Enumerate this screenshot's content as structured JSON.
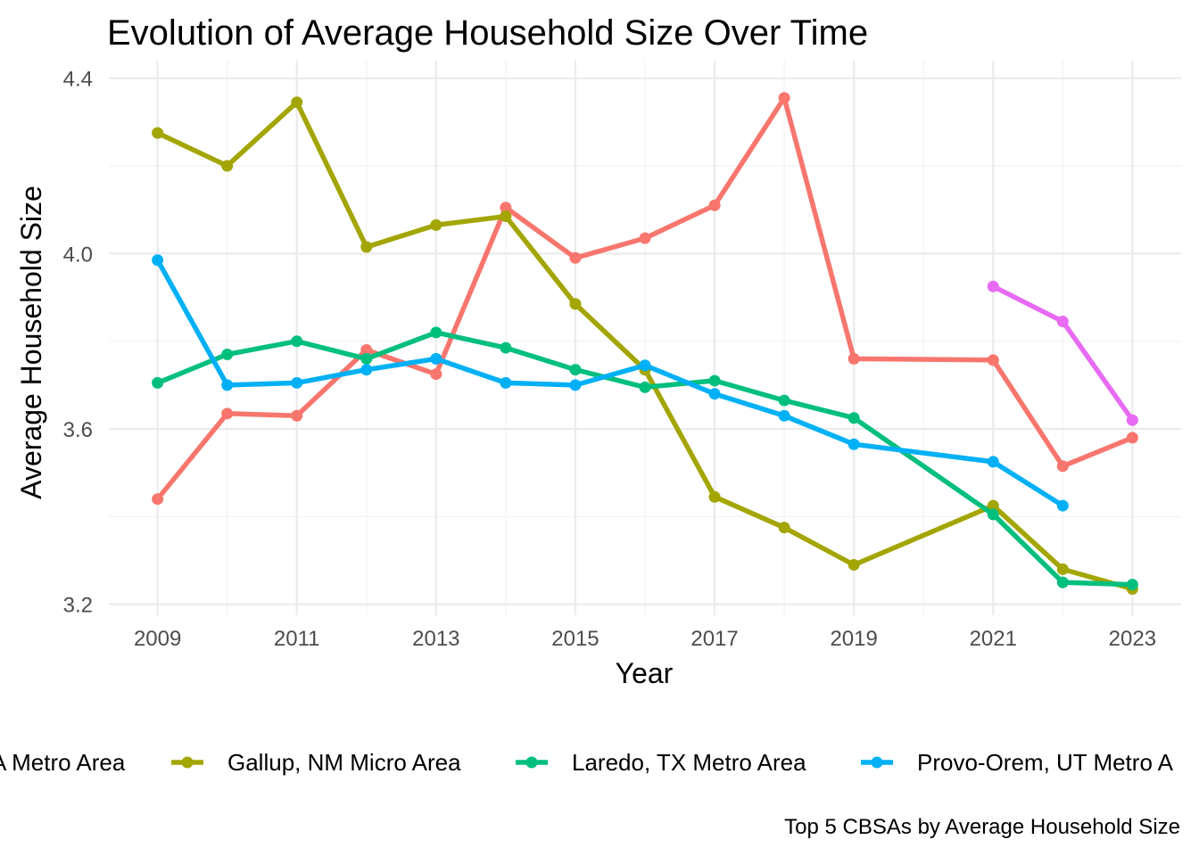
{
  "chart_data": {
    "type": "line",
    "title": "Evolution of Average Household Size Over Time",
    "xlabel": "Year",
    "ylabel": "Average Household Size",
    "caption": "Top 5 CBSAs by Average Household Size",
    "xlim": [
      2008.3,
      2023.7
    ],
    "ylim": [
      3.175,
      4.44
    ],
    "x_ticks": [
      2009,
      2011,
      2013,
      2015,
      2017,
      2019,
      2021,
      2023
    ],
    "x_minor_ticks": [
      2010,
      2012,
      2014,
      2016,
      2018,
      2020,
      2022
    ],
    "y_ticks": [
      3.2,
      3.6,
      4.0,
      4.4
    ],
    "y_tick_labels": [
      "3.2",
      "3.6",
      "4.0",
      "4.4"
    ],
    "y_minor_ticks": [
      3.4,
      3.8,
      4.2
    ],
    "grid": true,
    "legend_position": "bottom",
    "series": [
      {
        "name": "A Metro Area",
        "color": "#F8766D",
        "points": [
          {
            "x": 2009,
            "y": 3.44
          },
          {
            "x": 2010,
            "y": 3.635
          },
          {
            "x": 2011,
            "y": 3.63
          },
          {
            "x": 2012,
            "y": 3.78
          },
          {
            "x": 2013,
            "y": 3.725
          },
          {
            "x": 2014,
            "y": 4.105
          },
          {
            "x": 2015,
            "y": 3.99
          },
          {
            "x": 2016,
            "y": 4.035
          },
          {
            "x": 2017,
            "y": 4.11
          },
          {
            "x": 2018,
            "y": 4.355
          },
          {
            "x": 2019,
            "y": 3.76
          },
          {
            "x": 2021,
            "y": 3.757
          },
          {
            "x": 2022,
            "y": 3.515
          },
          {
            "x": 2023,
            "y": 3.58
          }
        ]
      },
      {
        "name": "Gallup, NM Micro Area",
        "color": "#A3A500",
        "points": [
          {
            "x": 2009,
            "y": 4.275
          },
          {
            "x": 2010,
            "y": 4.2
          },
          {
            "x": 2011,
            "y": 4.345
          },
          {
            "x": 2012,
            "y": 4.015
          },
          {
            "x": 2013,
            "y": 4.065
          },
          {
            "x": 2014,
            "y": 4.085
          },
          {
            "x": 2015,
            "y": 3.885
          },
          {
            "x": 2016,
            "y": 3.735
          },
          {
            "x": 2017,
            "y": 3.445
          },
          {
            "x": 2018,
            "y": 3.375
          },
          {
            "x": 2019,
            "y": 3.29
          },
          {
            "x": 2021,
            "y": 3.425
          },
          {
            "x": 2022,
            "y": 3.28
          },
          {
            "x": 2023,
            "y": 3.235
          }
        ]
      },
      {
        "name": "Laredo, TX Metro Area",
        "color": "#00BF7D",
        "points": [
          {
            "x": 2009,
            "y": 3.705
          },
          {
            "x": 2010,
            "y": 3.77
          },
          {
            "x": 2011,
            "y": 3.8
          },
          {
            "x": 2012,
            "y": 3.76
          },
          {
            "x": 2013,
            "y": 3.82
          },
          {
            "x": 2014,
            "y": 3.785
          },
          {
            "x": 2015,
            "y": 3.735
          },
          {
            "x": 2016,
            "y": 3.695
          },
          {
            "x": 2017,
            "y": 3.71
          },
          {
            "x": 2018,
            "y": 3.665
          },
          {
            "x": 2019,
            "y": 3.625
          },
          {
            "x": 2021,
            "y": 3.405
          },
          {
            "x": 2022,
            "y": 3.25
          },
          {
            "x": 2023,
            "y": 3.245
          }
        ]
      },
      {
        "name": "Provo-Orem, UT Metro A",
        "color": "#00B0F6",
        "points": [
          {
            "x": 2009,
            "y": 3.985
          },
          {
            "x": 2010,
            "y": 3.7
          },
          {
            "x": 2011,
            "y": 3.705
          },
          {
            "x": 2012,
            "y": 3.735
          },
          {
            "x": 2013,
            "y": 3.76
          },
          {
            "x": 2014,
            "y": 3.705
          },
          {
            "x": 2015,
            "y": 3.7
          },
          {
            "x": 2016,
            "y": 3.745
          },
          {
            "x": 2017,
            "y": 3.68
          },
          {
            "x": 2018,
            "y": 3.63
          },
          {
            "x": 2019,
            "y": 3.565
          },
          {
            "x": 2021,
            "y": 3.525
          },
          {
            "x": 2022,
            "y": 3.425
          }
        ]
      },
      {
        "name": "",
        "color": "#E76BF3",
        "points": [
          {
            "x": 2021,
            "y": 3.925
          },
          {
            "x": 2022,
            "y": 3.845
          },
          {
            "x": 2023,
            "y": 3.62
          }
        ]
      }
    ]
  }
}
